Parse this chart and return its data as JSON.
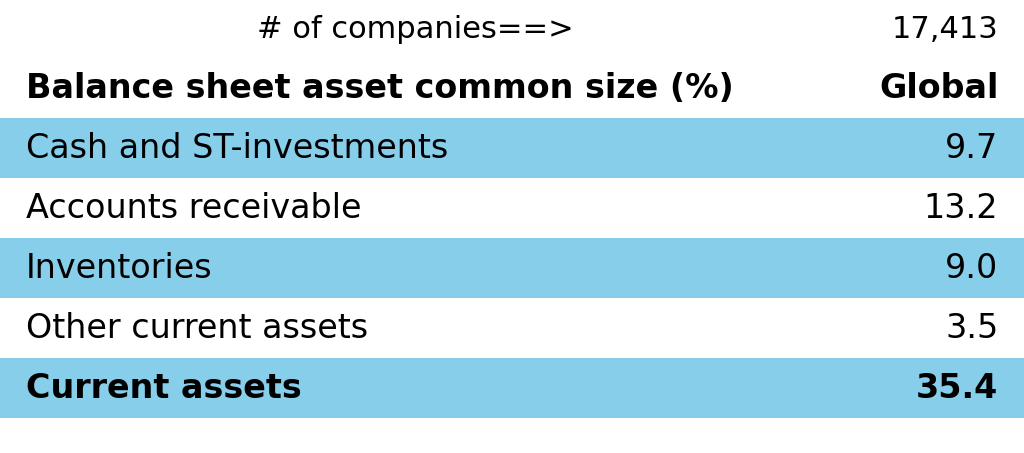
{
  "header_label": "# of companies==>",
  "header_value": "17,413",
  "col1_header": "Balance sheet asset common size (%)",
  "col2_header": "Global",
  "rows": [
    {
      "label": "Cash and ST-investments",
      "value": "9.7",
      "highlight": true,
      "bold": false
    },
    {
      "label": "Accounts receivable",
      "value": "13.2",
      "highlight": false,
      "bold": false
    },
    {
      "label": "Inventories",
      "value": "9.0",
      "highlight": true,
      "bold": false
    },
    {
      "label": "Other current assets",
      "value": "3.5",
      "highlight": false,
      "bold": false
    },
    {
      "label": "Current assets",
      "value": "35.4",
      "highlight": true,
      "bold": true
    }
  ],
  "highlight_color": "#87CEEB",
  "white_color": "#FFFFFF",
  "background_color": "#FFFFFF",
  "row_fontsize": 24,
  "header_fontsize": 22,
  "subheader_fontsize": 24,
  "fig_width": 10.24,
  "fig_height": 4.53,
  "dpi": 100
}
